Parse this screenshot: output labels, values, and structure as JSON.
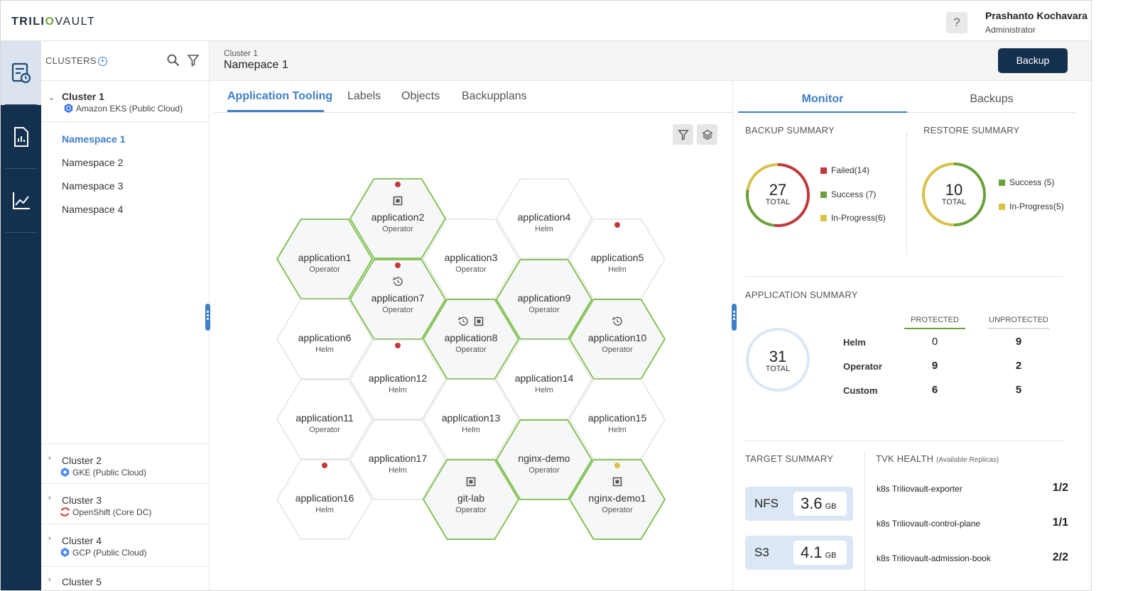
{
  "app": {
    "logo_a": "TRILI",
    "logo_o": "O",
    "logo_b": "VAULT"
  },
  "header": {
    "help": "?",
    "user_name": "Prashanto Kochavara",
    "user_role": "Administrator"
  },
  "clusters_panel": {
    "title": "CLUSTERS",
    "clusters": [
      {
        "name": "Cluster 1",
        "type": "Amazon EKS (Public Cloud)",
        "expanded": true,
        "namespaces": [
          "Namespace 1",
          "Namespace 2",
          "Namespace 3",
          "Namespace 4"
        ]
      },
      {
        "name": "Cluster 2",
        "type": "GKE (Public Cloud)"
      },
      {
        "name": "Cluster 3",
        "type": "OpenShift (Core DC)"
      },
      {
        "name": "Cluster 4",
        "type": "GCP (Public Cloud)"
      },
      {
        "name": "Cluster 5",
        "type": ""
      }
    ]
  },
  "breadcrumb": {
    "cluster": "Cluster 1",
    "namespace": "Namepace 1"
  },
  "actions": {
    "backup_label": "Backup"
  },
  "tabs": [
    "Application Tooling",
    "Labels",
    "Objects",
    "Backupplans"
  ],
  "applications": [
    {
      "name": "application2",
      "type": "Operator",
      "protected": true,
      "dot": "red",
      "icons": [
        "snapshot"
      ]
    },
    {
      "name": "application4",
      "type": "Helm",
      "protected": false
    },
    {
      "name": "application1",
      "type": "Operator",
      "protected": true
    },
    {
      "name": "application3",
      "type": "Operator",
      "protected": false
    },
    {
      "name": "application5",
      "type": "Helm",
      "protected": false,
      "dot": "red"
    },
    {
      "name": "application7",
      "type": "Operator",
      "protected": true,
      "dot": "red",
      "icons": [
        "history"
      ]
    },
    {
      "name": "application9",
      "type": "Operator",
      "protected": true
    },
    {
      "name": "application6",
      "type": "Helm",
      "protected": false
    },
    {
      "name": "application8",
      "type": "Operator",
      "protected": true,
      "icons": [
        "history",
        "snapshot"
      ]
    },
    {
      "name": "application10",
      "type": "Operator",
      "protected": true,
      "icons": [
        "history"
      ]
    },
    {
      "name": "application12",
      "type": "Helm",
      "protected": false,
      "dot": "red"
    },
    {
      "name": "application14",
      "type": "Helm",
      "protected": false
    },
    {
      "name": "application11",
      "type": "Operator",
      "protected": false
    },
    {
      "name": "application13",
      "type": "Helm",
      "protected": false
    },
    {
      "name": "application15",
      "type": "Helm",
      "protected": false
    },
    {
      "name": "application17",
      "type": "Helm",
      "protected": false
    },
    {
      "name": "nginx-demo",
      "type": "Operator",
      "protected": true
    },
    {
      "name": "application16",
      "type": "Helm",
      "protected": false,
      "dot": "red"
    },
    {
      "name": "git-lab",
      "type": "Operator",
      "protected": true,
      "icons": [
        "snapshot"
      ]
    },
    {
      "name": "nginx-demo1",
      "type": "Operator",
      "protected": true,
      "dot": "yellow",
      "icons": [
        "snapshot"
      ]
    }
  ],
  "monitor": {
    "tabs": [
      "Monitor",
      "Backups"
    ],
    "backup_summary": {
      "title": "BACKUP SUMMARY",
      "total": "27",
      "total_label": "TOTAL",
      "legend": [
        {
          "label": "Failed(14)",
          "color": "#c0393b",
          "value": 14
        },
        {
          "label": "Success (7)",
          "color": "#6aa13a",
          "value": 7
        },
        {
          "label": "In-Progress(6)",
          "color": "#d8c249",
          "value": 6
        }
      ]
    },
    "restore_summary": {
      "title": "RESTORE SUMMARY",
      "total": "10",
      "total_label": "TOTAL",
      "legend": [
        {
          "label": "Success (5)",
          "color": "#6aa13a",
          "value": 5
        },
        {
          "label": "In-Progress(5)",
          "color": "#d8c249",
          "value": 5
        }
      ]
    },
    "application_summary": {
      "title": "APPLICATION SUMMARY",
      "total": "31",
      "total_label": "TOTAL",
      "columns": [
        "PROTECTED",
        "UNPROTECTED"
      ],
      "rows": [
        {
          "label": "Helm",
          "protected": "0",
          "unprotected": "9"
        },
        {
          "label": "Operator",
          "protected": "9",
          "unprotected": "2"
        },
        {
          "label": "Custom",
          "protected": "6",
          "unprotected": "5"
        }
      ]
    },
    "target_summary": {
      "title": "TARGET SUMMARY",
      "targets": [
        {
          "name": "NFS",
          "value": "3.6",
          "unit": "GB"
        },
        {
          "name": "S3",
          "value": "4.1",
          "unit": "GB"
        }
      ]
    },
    "tvk_health": {
      "title": "TVK HEALTH",
      "subtitle": "(Available Replicas)",
      "items": [
        {
          "name": "k8s Triliovault-exporter",
          "value": "1/2"
        },
        {
          "name": "k8s Triliovault-control-plane",
          "value": "1/1"
        },
        {
          "name": "k8s Triliovault-admission-book",
          "value": "2/2"
        }
      ]
    }
  }
}
